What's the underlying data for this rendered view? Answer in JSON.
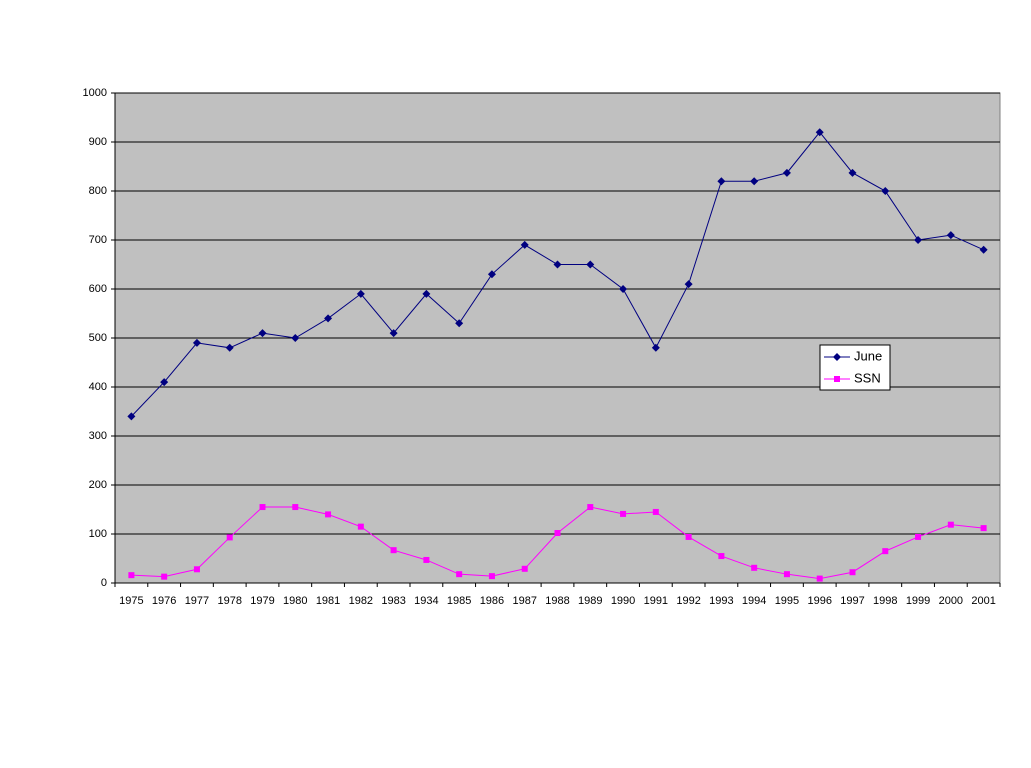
{
  "chart_data": {
    "type": "line",
    "categories": [
      "1975",
      "1976",
      "1977",
      "1978",
      "1979",
      "1980",
      "1981",
      "1982",
      "1983",
      "1934",
      "1985",
      "1986",
      "1987",
      "1988",
      "1989",
      "1990",
      "1991",
      "1992",
      "1993",
      "1994",
      "1995",
      "1996",
      "1997",
      "1998",
      "1999",
      "2000",
      "2001"
    ],
    "series": [
      {
        "name": "June",
        "color": "#000080",
        "marker": "diamond",
        "values": [
          340,
          410,
          490,
          480,
          510,
          500,
          540,
          590,
          510,
          590,
          530,
          630,
          690,
          650,
          650,
          600,
          480,
          610,
          820,
          820,
          837,
          920,
          837,
          800,
          700,
          710,
          680
        ]
      },
      {
        "name": "SSN",
        "color": "#ff00ff",
        "marker": "square",
        "values": [
          16,
          13,
          28,
          93,
          155,
          155,
          140,
          115,
          67,
          47,
          18,
          14,
          29,
          102,
          155,
          141,
          145,
          94,
          55,
          31,
          18,
          9,
          22,
          65,
          94,
          119,
          112
        ]
      }
    ],
    "ylim": [
      0,
      1000
    ],
    "yticks": [
      0,
      100,
      200,
      300,
      400,
      500,
      600,
      700,
      800,
      900,
      1000
    ],
    "grid": true,
    "legend": "right"
  }
}
